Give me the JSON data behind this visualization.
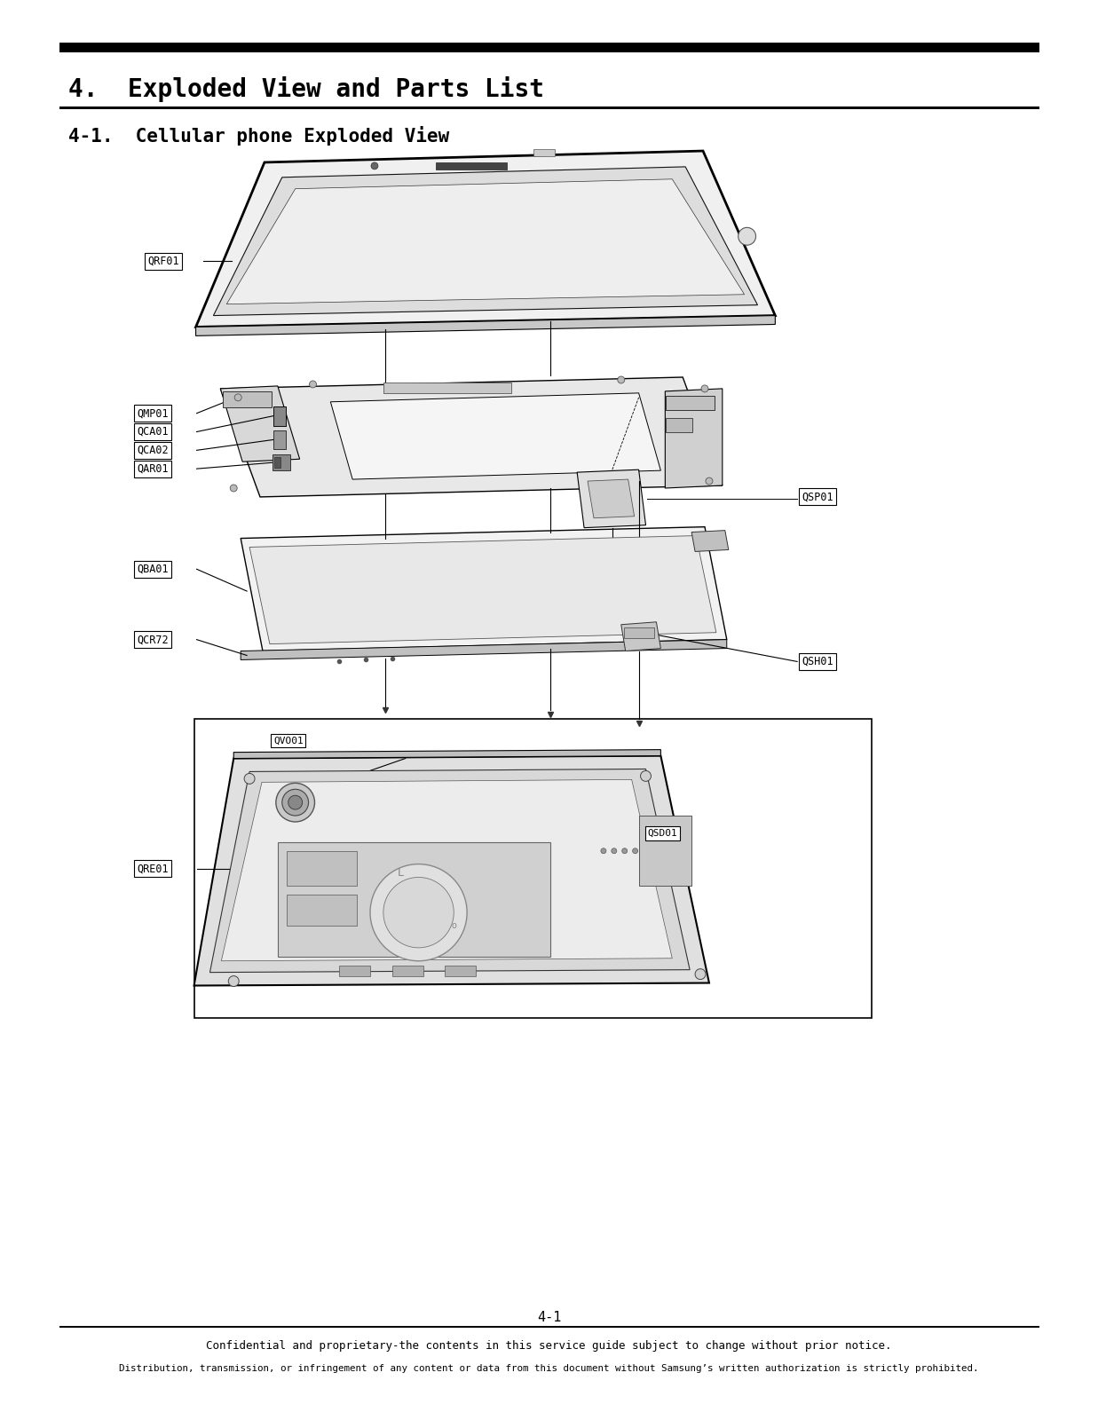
{
  "title1": "4.  Exploded View and Parts List",
  "title2": "4-1.  Cellular phone Exploded View",
  "page_num": "4-1",
  "footer1": "Confidential and proprietary-the contents in this service guide subject to change without prior notice.",
  "footer2": "Distribution, transmission, or infringement of any content or data from this document without Samsung’s written authorization is strictly prohibited.",
  "bg_color": "#ffffff",
  "text_color": "#000000"
}
